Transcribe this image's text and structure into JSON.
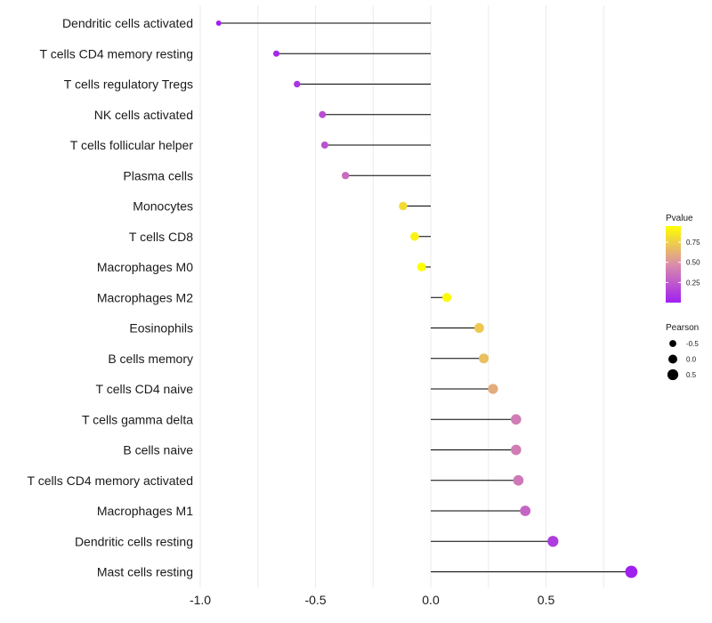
{
  "chart_data": {
    "type": "lollipop",
    "title": "",
    "xlabel": "",
    "ylabel": "",
    "xlim": [
      -1.0,
      0.85
    ],
    "xticks": [
      -1.0,
      -0.5,
      0.0,
      0.5
    ],
    "xtick_labels": [
      "-1.0",
      "-0.5",
      "0.0",
      "0.5"
    ],
    "grid": true,
    "categories": [
      "Dendritic cells activated",
      "T cells CD4 memory resting",
      "T cells regulatory  Tregs ",
      "NK cells activated",
      "T cells follicular helper",
      "Plasma cells",
      "Monocytes",
      "T cells CD8",
      "Macrophages M0",
      "Macrophages M2",
      "Eosinophils",
      "B cells memory",
      "T cells CD4 naive",
      "T cells gamma delta",
      "B cells naive",
      "T cells CD4 memory activated",
      "Macrophages M1",
      "Dendritic cells resting",
      "Mast cells resting"
    ],
    "pearson": [
      -0.92,
      -0.67,
      -0.58,
      -0.47,
      -0.46,
      -0.37,
      -0.12,
      -0.07,
      -0.04,
      0.07,
      0.21,
      0.23,
      0.27,
      0.37,
      0.37,
      0.38,
      0.41,
      0.53,
      0.87
    ],
    "pvalue": [
      0.0,
      0.04,
      0.09,
      0.2,
      0.21,
      0.33,
      0.8,
      0.9,
      0.95,
      0.93,
      0.72,
      0.68,
      0.6,
      0.4,
      0.4,
      0.38,
      0.3,
      0.12,
      0.0
    ],
    "legend": {
      "color_title": "Pvalue",
      "color_ticks": [
        0.75,
        0.5,
        0.25
      ],
      "color_tick_labels": [
        "0.75",
        "0.50",
        "0.25"
      ],
      "color_range": [
        0.0,
        0.95
      ],
      "color_low": "#a020f0",
      "color_mid": "#da8eaa",
      "color_high": "#ffff00",
      "size_title": "Pearson",
      "size_values": [
        -0.5,
        0.0,
        0.5
      ],
      "size_labels": [
        "-0.5",
        "0.0",
        "0.5"
      ],
      "placement": "right"
    },
    "colors": {
      "stem": "#000000",
      "grid": "#ebebeb",
      "text": "#1a1a1a"
    }
  }
}
